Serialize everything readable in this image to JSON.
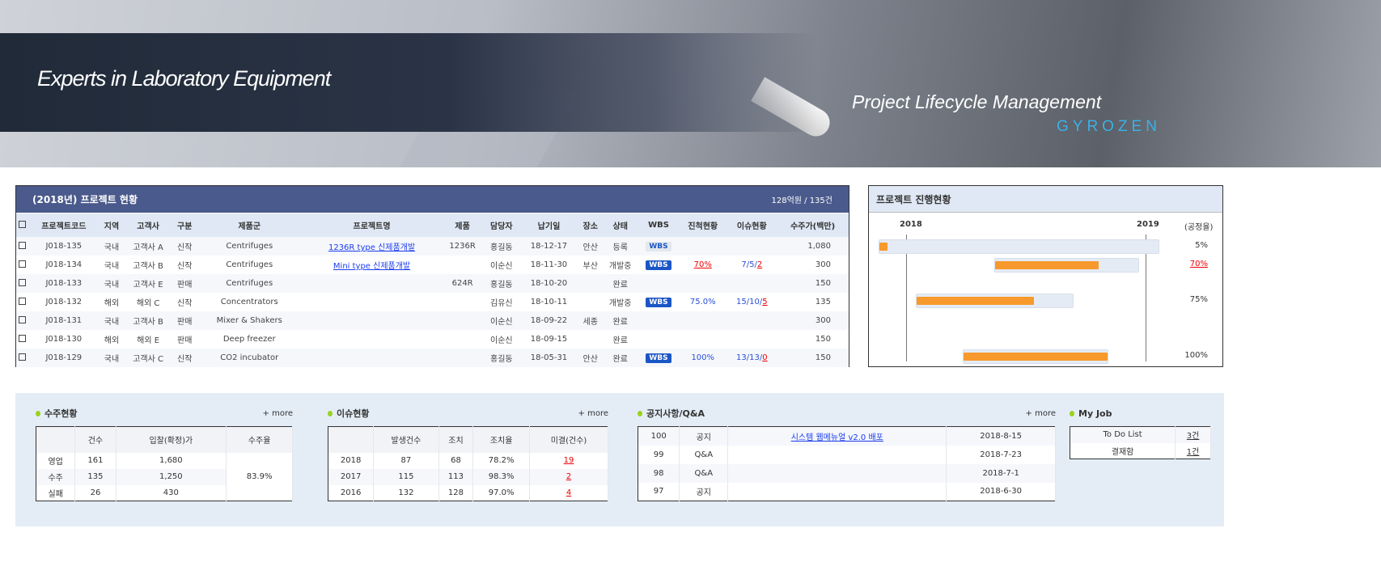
{
  "banner": {
    "title": "Experts in Laboratory Equipment",
    "subtitle": "Project Lifecycle Management",
    "logo": "GYROZEN"
  },
  "project": {
    "title": "(2018년) 프로젝트 현황",
    "summary": "128억원 / 135건",
    "columns": [
      "프로젝트코드",
      "지역",
      "고객사",
      "구분",
      "제품군",
      "프로젝트명",
      "제품",
      "담당자",
      "납기일",
      "장소",
      "상태",
      "WBS",
      "진척현황",
      "이슈현황",
      "수주가(백만)"
    ],
    "rows": [
      {
        "code": "J018-135",
        "region": "국내",
        "client": "고객사 A",
        "type": "신작",
        "group": "Centrifuges",
        "name": "1236R type 신제품개발",
        "product": "1236R",
        "owner": "홍길동",
        "due": "18-12-17",
        "place": "안산",
        "status": "등록",
        "wbs": "WBS",
        "wbs_active": false,
        "progress": "",
        "issue_a": "",
        "issue_b": "",
        "price": "1,080"
      },
      {
        "code": "J018-134",
        "region": "국내",
        "client": "고객사 B",
        "type": "신작",
        "group": "Centrifuges",
        "name": "Mini type 신제품개발",
        "product": "",
        "owner": "이순신",
        "due": "18-11-30",
        "place": "부산",
        "status": "개발중",
        "wbs": "WBS",
        "wbs_active": true,
        "progress": "70%",
        "progress_alert": true,
        "issue_a": "7/5/",
        "issue_b": "2",
        "price": "300"
      },
      {
        "code": "J018-133",
        "region": "국내",
        "client": "고객사 E",
        "type": "판매",
        "group": "Centrifuges",
        "name": "",
        "product": "624R",
        "owner": "홍길동",
        "due": "18-10-20",
        "place": "",
        "status": "완료",
        "wbs": "",
        "progress": "",
        "issue_a": "",
        "issue_b": "",
        "price": "150"
      },
      {
        "code": "J018-132",
        "region": "해외",
        "client": "해외 C",
        "type": "신작",
        "group": "Concentrators",
        "name": "",
        "product": "",
        "owner": "김유신",
        "due": "18-10-11",
        "place": "",
        "status": "개발중",
        "wbs": "WBS",
        "wbs_active": true,
        "progress": "75.0%",
        "issue_a": "15/10/",
        "issue_b": "5",
        "price": "135"
      },
      {
        "code": "J018-131",
        "region": "국내",
        "client": "고객사 B",
        "type": "판매",
        "group": "Mixer & Shakers",
        "name": "",
        "product": "",
        "owner": "이순신",
        "due": "18-09-22",
        "place": "세종",
        "status": "완료",
        "wbs": "",
        "progress": "",
        "issue_a": "",
        "issue_b": "",
        "price": "300"
      },
      {
        "code": "J018-130",
        "region": "해외",
        "client": "해외 E",
        "type": "판매",
        "group": "Deep freezer",
        "name": "",
        "product": "",
        "owner": "이순신",
        "due": "18-09-15",
        "place": "",
        "status": "완료",
        "wbs": "",
        "progress": "",
        "issue_a": "",
        "issue_b": "",
        "price": "150"
      },
      {
        "code": "J018-129",
        "region": "국내",
        "client": "고객사 C",
        "type": "신작",
        "group": "CO2 incubator",
        "name": "",
        "product": "",
        "owner": "홍길동",
        "due": "18-05-31",
        "place": "안산",
        "status": "완료",
        "wbs": "WBS",
        "wbs_active": true,
        "progress": "100%",
        "issue_a": "13/13/",
        "issue_b": "0",
        "price": "150"
      }
    ]
  },
  "gantt": {
    "title": "프로젝트 진행현황",
    "years": [
      "2018",
      "2019"
    ],
    "rate_label": "(공정율)",
    "rows": [
      {
        "percent": "5%",
        "progress": 5
      },
      {
        "percent": "70%",
        "progress": 70,
        "alert": true
      },
      {
        "percent": "75%",
        "progress": 75
      },
      {
        "percent": "100%",
        "progress": 100
      }
    ]
  },
  "orders": {
    "title": "수주현황",
    "more": "+ more",
    "columns": [
      "",
      "건수",
      "입찰(확정)가",
      "수주율"
    ],
    "rows": [
      [
        "영업",
        "161",
        "1,680"
      ],
      [
        "수주",
        "135",
        "1,250"
      ],
      [
        "실패",
        "26",
        "430"
      ]
    ],
    "rate": "83.9%"
  },
  "issues": {
    "title": "이슈현황",
    "more": "+ more",
    "columns": [
      "",
      "발생건수",
      "조치",
      "조치율",
      "미결(건수)"
    ],
    "rows": [
      [
        "2018",
        "87",
        "68",
        "78.2%",
        "19"
      ],
      [
        "2017",
        "115",
        "113",
        "98.3%",
        "2"
      ],
      [
        "2016",
        "132",
        "128",
        "97.0%",
        "4"
      ]
    ]
  },
  "notices": {
    "title": "공지사항/Q&A",
    "more": "+ more",
    "rows": [
      [
        "100",
        "공지",
        "시스템 웹메뉴얼 v2.0 배포",
        "2018-8-15"
      ],
      [
        "99",
        "Q&A",
        "",
        "2018-7-23"
      ],
      [
        "98",
        "Q&A",
        "",
        "2018-7-1"
      ],
      [
        "97",
        "공지",
        "",
        "2018-6-30"
      ]
    ]
  },
  "myjob": {
    "title": "My Job",
    "rows": [
      [
        "To Do List",
        "3건"
      ],
      [
        "결재함",
        "1건"
      ]
    ]
  },
  "colors": {
    "header": "#4a5a8c",
    "accent_orange": "#f7992c",
    "link": "#1a3cf0",
    "alert": "#e00000"
  }
}
